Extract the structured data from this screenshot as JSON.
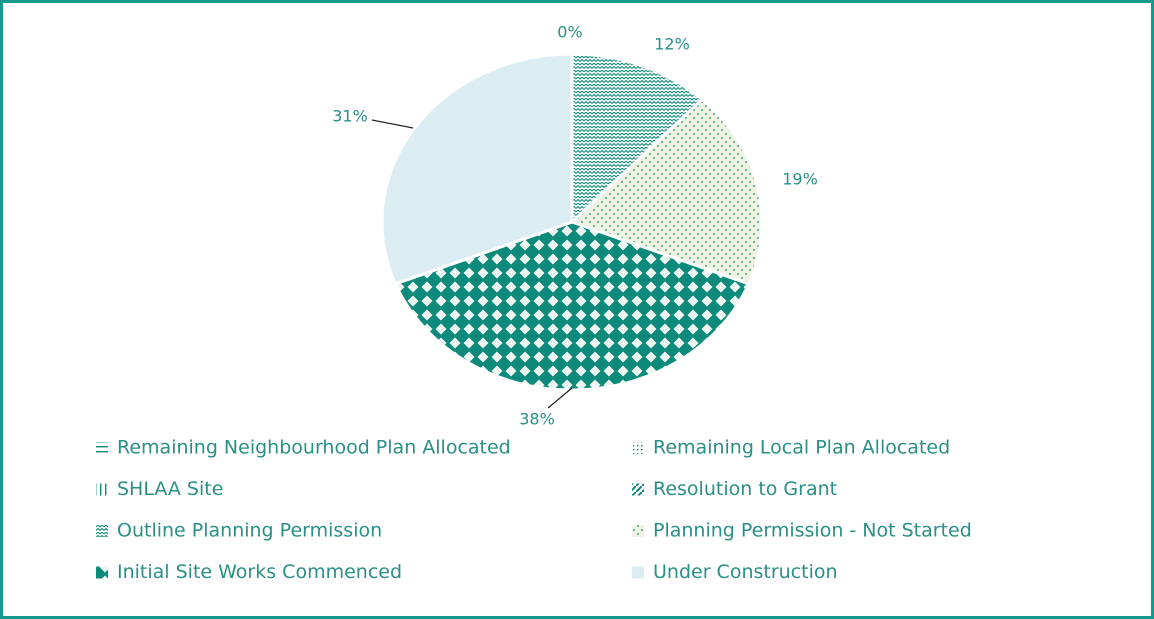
{
  "chart_data": {
    "type": "pie",
    "categories": [
      "Remaining Neighbourhood Plan Allocated",
      "Remaining Local Plan Allocated",
      "SHLAA Site",
      "Resolution to Grant",
      "Outline Planning Permission",
      "Planning Permission - Not Started",
      "Initial Site Works Commenced",
      "Under Construction"
    ],
    "values": [
      0,
      0,
      0,
      0,
      12,
      19,
      38,
      31
    ],
    "value_labels": [
      null,
      null,
      null,
      "0%",
      "12%",
      "19%",
      "38%",
      "31%"
    ],
    "colors": [
      "#0e8a7a",
      "#0e8a7a",
      "#0e8a7a",
      "#0e8a7a",
      "#0e8a7a",
      "#eef3e0",
      "#0e8a7a",
      "#dbedf3"
    ],
    "patterns": [
      "hlines",
      "vdots",
      "grid",
      "diagonal",
      "zigzag",
      "dots",
      "diamond",
      "solid"
    ],
    "legend": "bottom"
  }
}
